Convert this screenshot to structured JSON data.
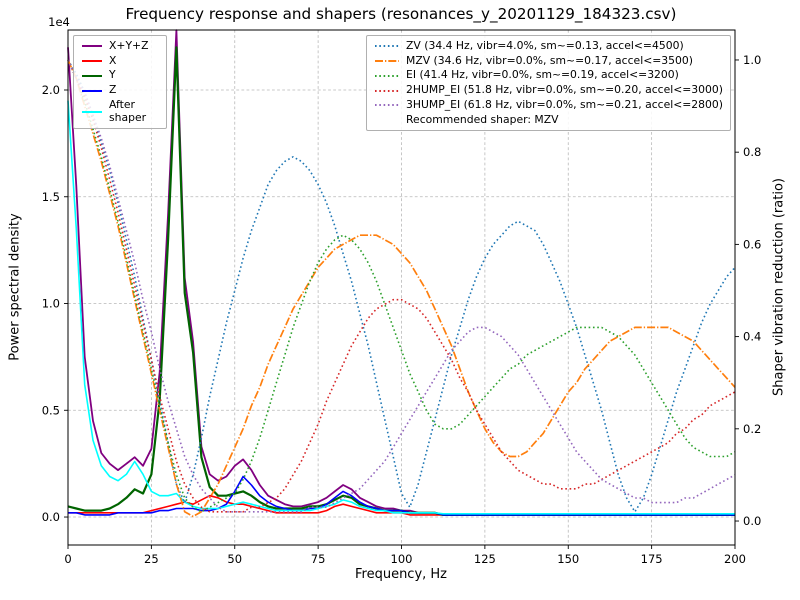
{
  "title": "Frequency response and shapers (resonances_y_20201129_184323.csv)",
  "xlabel": "Frequency, Hz",
  "ylabel_left": "Power spectral density",
  "ylabel_right": "Shaper vibration reduction (ratio)",
  "offset_text": "1e4",
  "recommended_label": "Recommended shaper: MZV",
  "chart_data": {
    "type": "line",
    "x_range": [
      0,
      200
    ],
    "ylim_left": [
      -0.131,
      2.281
    ],
    "ylim_right": [
      -0.052,
      1.065
    ],
    "x_ticks": [
      "0",
      "25",
      "50",
      "75",
      "100",
      "125",
      "150",
      "175",
      "200"
    ],
    "y_ticks_left": [
      "0.0",
      "0.5",
      "1.0",
      "1.5",
      "2.0"
    ],
    "y_ticks_right": [
      "0.0",
      "0.2",
      "0.4",
      "0.6",
      "0.8",
      "1.0"
    ],
    "grid": true,
    "left_axis_units": "1e4",
    "x": [
      0,
      2.5,
      5,
      7.5,
      10,
      12.5,
      15,
      17.5,
      20,
      22.5,
      25,
      27.5,
      30,
      32.5,
      35,
      37.5,
      40,
      42.5,
      45,
      47.5,
      50,
      52.5,
      55,
      57.5,
      60,
      62.5,
      65,
      67.5,
      70,
      72.5,
      75,
      77.5,
      80,
      82.5,
      85,
      87.5,
      90,
      92.5,
      95,
      97.5,
      100,
      102.5,
      105,
      107.5,
      110,
      112.5,
      115,
      117.5,
      120,
      122.5,
      125,
      127.5,
      130,
      132.5,
      135,
      137.5,
      140,
      142.5,
      145,
      147.5,
      150,
      152.5,
      155,
      157.5,
      160,
      162.5,
      165,
      167.5,
      170,
      172.5,
      175,
      177.5,
      180,
      182.5,
      185,
      187.5,
      190,
      192.5,
      195,
      197.5,
      200
    ],
    "psd_series": [
      {
        "name": "X+Y+Z",
        "color": "#800080",
        "style": "solid",
        "width": 1.8,
        "values": [
          2.2,
          1.55,
          0.75,
          0.45,
          0.3,
          0.25,
          0.22,
          0.25,
          0.28,
          0.24,
          0.32,
          0.68,
          1.42,
          2.28,
          1.12,
          0.82,
          0.33,
          0.2,
          0.17,
          0.19,
          0.24,
          0.27,
          0.22,
          0.15,
          0.1,
          0.08,
          0.06,
          0.05,
          0.05,
          0.06,
          0.07,
          0.09,
          0.12,
          0.15,
          0.13,
          0.09,
          0.07,
          0.05,
          0.04,
          0.04,
          0.03,
          0.03,
          0.02,
          0.02,
          0.02,
          0.01,
          0.01,
          0.01,
          0.01,
          0.01,
          0.01,
          0.01,
          0.01,
          0.01,
          0.01,
          0.01,
          0.01,
          0.01,
          0.01,
          0.01,
          0.01,
          0.01,
          0.01,
          0.01,
          0.01,
          0.01,
          0.01,
          0.01,
          0.01,
          0.01,
          0.01,
          0.01,
          0.01,
          0.01,
          0.01,
          0.01,
          0.01,
          0.01,
          0.01,
          0.01,
          0.01
        ]
      },
      {
        "name": "X",
        "color": "#ff0000",
        "style": "solid",
        "width": 1.6,
        "values": [
          0.02,
          0.02,
          0.02,
          0.02,
          0.02,
          0.02,
          0.02,
          0.02,
          0.02,
          0.02,
          0.03,
          0.04,
          0.05,
          0.06,
          0.07,
          0.06,
          0.08,
          0.1,
          0.09,
          0.07,
          0.06,
          0.06,
          0.05,
          0.04,
          0.03,
          0.02,
          0.02,
          0.02,
          0.02,
          0.02,
          0.02,
          0.03,
          0.05,
          0.06,
          0.05,
          0.04,
          0.03,
          0.02,
          0.02,
          0.02,
          0.02,
          0.01,
          0.01,
          0.01,
          0.01,
          0.01,
          0.01,
          0.01,
          0.01,
          0.01,
          0.01,
          0.01,
          0.01,
          0.01,
          0.01,
          0.01,
          0.01,
          0.01,
          0.01,
          0.01,
          0.01,
          0.01,
          0.01,
          0.01,
          0.01,
          0.01,
          0.01,
          0.01,
          0.01,
          0.01,
          0.01,
          0.01,
          0.01,
          0.01,
          0.01,
          0.01,
          0.01,
          0.01,
          0.01,
          0.01,
          0.01
        ]
      },
      {
        "name": "Y",
        "color": "#006400",
        "style": "solid",
        "width": 2.2,
        "values": [
          0.05,
          0.04,
          0.03,
          0.03,
          0.03,
          0.04,
          0.06,
          0.09,
          0.13,
          0.11,
          0.2,
          0.55,
          1.3,
          2.2,
          1.05,
          0.77,
          0.28,
          0.14,
          0.1,
          0.1,
          0.11,
          0.12,
          0.1,
          0.07,
          0.05,
          0.04,
          0.04,
          0.04,
          0.04,
          0.05,
          0.05,
          0.06,
          0.08,
          0.1,
          0.09,
          0.06,
          0.05,
          0.04,
          0.03,
          0.03,
          0.03,
          0.02,
          0.02,
          0.02,
          0.02,
          0.01,
          0.01,
          0.01,
          0.01,
          0.01,
          0.01,
          0.01,
          0.01,
          0.01,
          0.01,
          0.01,
          0.01,
          0.01,
          0.01,
          0.01,
          0.01,
          0.01,
          0.01,
          0.01,
          0.01,
          0.01,
          0.01,
          0.01,
          0.01,
          0.01,
          0.01,
          0.01,
          0.01,
          0.01,
          0.01,
          0.01,
          0.01,
          0.01,
          0.01,
          0.01,
          0.01
        ]
      },
      {
        "name": "Z",
        "color": "#0000ff",
        "style": "solid",
        "width": 1.6,
        "values": [
          0.02,
          0.02,
          0.01,
          0.01,
          0.01,
          0.01,
          0.02,
          0.02,
          0.02,
          0.02,
          0.02,
          0.03,
          0.03,
          0.04,
          0.04,
          0.04,
          0.03,
          0.03,
          0.04,
          0.06,
          0.12,
          0.19,
          0.15,
          0.1,
          0.07,
          0.05,
          0.04,
          0.03,
          0.03,
          0.04,
          0.04,
          0.06,
          0.09,
          0.12,
          0.1,
          0.07,
          0.05,
          0.04,
          0.03,
          0.03,
          0.03,
          0.02,
          0.02,
          0.02,
          0.02,
          0.01,
          0.01,
          0.01,
          0.01,
          0.01,
          0.01,
          0.01,
          0.01,
          0.01,
          0.01,
          0.01,
          0.01,
          0.01,
          0.01,
          0.01,
          0.01,
          0.01,
          0.01,
          0.01,
          0.01,
          0.01,
          0.01,
          0.01,
          0.01,
          0.01,
          0.01,
          0.01,
          0.01,
          0.01,
          0.01,
          0.01,
          0.01,
          0.01,
          0.01,
          0.01,
          0.01
        ]
      },
      {
        "name": "After shaper",
        "color": "#00ffff",
        "style": "solid",
        "width": 1.6,
        "values": [
          1.95,
          1.35,
          0.62,
          0.36,
          0.24,
          0.19,
          0.17,
          0.2,
          0.26,
          0.2,
          0.12,
          0.1,
          0.1,
          0.11,
          0.07,
          0.05,
          0.04,
          0.04,
          0.04,
          0.05,
          0.06,
          0.07,
          0.06,
          0.05,
          0.04,
          0.03,
          0.03,
          0.03,
          0.03,
          0.03,
          0.04,
          0.05,
          0.06,
          0.08,
          0.07,
          0.05,
          0.04,
          0.03,
          0.03,
          0.02,
          0.02,
          0.02,
          0.02,
          0.02,
          0.02,
          0.015,
          0.015,
          0.015,
          0.015,
          0.015,
          0.015,
          0.015,
          0.015,
          0.015,
          0.015,
          0.015,
          0.015,
          0.015,
          0.015,
          0.015,
          0.015,
          0.015,
          0.015,
          0.015,
          0.015,
          0.015,
          0.015,
          0.015,
          0.015,
          0.015,
          0.015,
          0.015,
          0.015,
          0.015,
          0.015,
          0.015,
          0.015,
          0.015,
          0.015,
          0.015,
          0.015
        ]
      }
    ],
    "shaper_series": [
      {
        "name": "ZV (34.4 Hz, vibr=4.0%, sm~=0.13, accel<=4500)",
        "color": "#1f77b4",
        "style": "dotted",
        "width": 1.6,
        "values": [
          1.0,
          0.97,
          0.93,
          0.88,
          0.82,
          0.76,
          0.69,
          0.61,
          0.53,
          0.44,
          0.35,
          0.26,
          0.17,
          0.08,
          0.04,
          0.1,
          0.18,
          0.27,
          0.35,
          0.43,
          0.5,
          0.57,
          0.63,
          0.68,
          0.73,
          0.76,
          0.78,
          0.79,
          0.78,
          0.76,
          0.73,
          0.69,
          0.64,
          0.58,
          0.52,
          0.45,
          0.38,
          0.3,
          0.22,
          0.14,
          0.06,
          0.03,
          0.08,
          0.15,
          0.22,
          0.29,
          0.36,
          0.42,
          0.48,
          0.53,
          0.57,
          0.6,
          0.62,
          0.64,
          0.65,
          0.64,
          0.63,
          0.6,
          0.56,
          0.52,
          0.47,
          0.42,
          0.36,
          0.3,
          0.24,
          0.17,
          0.1,
          0.05,
          0.02,
          0.05,
          0.1,
          0.16,
          0.22,
          0.28,
          0.33,
          0.38,
          0.43,
          0.47,
          0.5,
          0.53,
          0.55
        ]
      },
      {
        "name": "MZV (34.6 Hz, vibr=0.0%, sm~=0.17, accel<=3500)",
        "color": "#ff7f0e",
        "style": "dashdot",
        "width": 1.7,
        "values": [
          1.0,
          0.96,
          0.9,
          0.84,
          0.78,
          0.71,
          0.64,
          0.56,
          0.48,
          0.4,
          0.32,
          0.24,
          0.16,
          0.08,
          0.02,
          0.01,
          0.02,
          0.05,
          0.08,
          0.12,
          0.16,
          0.2,
          0.25,
          0.29,
          0.34,
          0.38,
          0.42,
          0.46,
          0.49,
          0.52,
          0.55,
          0.57,
          0.59,
          0.6,
          0.61,
          0.62,
          0.62,
          0.62,
          0.61,
          0.6,
          0.58,
          0.56,
          0.53,
          0.5,
          0.46,
          0.42,
          0.38,
          0.33,
          0.28,
          0.24,
          0.2,
          0.17,
          0.15,
          0.14,
          0.14,
          0.15,
          0.17,
          0.19,
          0.22,
          0.25,
          0.28,
          0.3,
          0.33,
          0.35,
          0.37,
          0.39,
          0.4,
          0.41,
          0.42,
          0.42,
          0.42,
          0.42,
          0.42,
          0.41,
          0.4,
          0.39,
          0.37,
          0.35,
          0.33,
          0.31,
          0.29
        ]
      },
      {
        "name": "EI (41.4 Hz, vibr=0.0%, sm~=0.19, accel<=3200)",
        "color": "#2ca02c",
        "style": "dotted",
        "width": 1.6,
        "values": [
          1.0,
          0.96,
          0.91,
          0.85,
          0.79,
          0.72,
          0.65,
          0.57,
          0.49,
          0.41,
          0.33,
          0.25,
          0.17,
          0.1,
          0.05,
          0.03,
          0.02,
          0.03,
          0.04,
          0.05,
          0.06,
          0.09,
          0.13,
          0.18,
          0.24,
          0.3,
          0.36,
          0.42,
          0.47,
          0.52,
          0.56,
          0.59,
          0.61,
          0.62,
          0.61,
          0.59,
          0.56,
          0.52,
          0.47,
          0.42,
          0.37,
          0.32,
          0.28,
          0.24,
          0.21,
          0.2,
          0.2,
          0.21,
          0.23,
          0.25,
          0.27,
          0.29,
          0.31,
          0.33,
          0.34,
          0.36,
          0.37,
          0.38,
          0.39,
          0.4,
          0.41,
          0.42,
          0.42,
          0.42,
          0.42,
          0.41,
          0.4,
          0.38,
          0.36,
          0.33,
          0.3,
          0.27,
          0.24,
          0.21,
          0.18,
          0.16,
          0.15,
          0.14,
          0.14,
          0.14,
          0.15
        ]
      },
      {
        "name": "2HUMP_EI (51.8 Hz, vibr=0.0%, sm~=0.20, accel<=3000)",
        "color": "#d62728",
        "style": "dotted",
        "width": 1.6,
        "values": [
          1.0,
          0.96,
          0.92,
          0.87,
          0.81,
          0.74,
          0.67,
          0.59,
          0.51,
          0.43,
          0.35,
          0.27,
          0.2,
          0.13,
          0.08,
          0.05,
          0.03,
          0.02,
          0.02,
          0.02,
          0.02,
          0.02,
          0.03,
          0.03,
          0.04,
          0.05,
          0.07,
          0.1,
          0.13,
          0.17,
          0.21,
          0.26,
          0.3,
          0.34,
          0.38,
          0.41,
          0.44,
          0.46,
          0.47,
          0.48,
          0.48,
          0.47,
          0.46,
          0.44,
          0.41,
          0.38,
          0.35,
          0.31,
          0.28,
          0.24,
          0.21,
          0.18,
          0.15,
          0.13,
          0.11,
          0.1,
          0.09,
          0.08,
          0.08,
          0.07,
          0.07,
          0.07,
          0.08,
          0.08,
          0.09,
          0.1,
          0.11,
          0.12,
          0.13,
          0.14,
          0.15,
          0.16,
          0.17,
          0.19,
          0.2,
          0.22,
          0.23,
          0.25,
          0.26,
          0.27,
          0.28
        ]
      },
      {
        "name": "3HUMP_EI (61.8 Hz, vibr=0.0%, sm~=0.21, accel<=2800)",
        "color": "#9467bd",
        "style": "dotted",
        "width": 1.6,
        "values": [
          1.0,
          0.96,
          0.93,
          0.88,
          0.83,
          0.77,
          0.7,
          0.63,
          0.56,
          0.48,
          0.41,
          0.33,
          0.26,
          0.2,
          0.14,
          0.1,
          0.07,
          0.05,
          0.03,
          0.02,
          0.02,
          0.02,
          0.02,
          0.02,
          0.02,
          0.02,
          0.02,
          0.02,
          0.02,
          0.03,
          0.03,
          0.03,
          0.04,
          0.05,
          0.06,
          0.07,
          0.09,
          0.11,
          0.13,
          0.16,
          0.19,
          0.22,
          0.25,
          0.28,
          0.31,
          0.34,
          0.37,
          0.39,
          0.41,
          0.42,
          0.42,
          0.41,
          0.4,
          0.38,
          0.36,
          0.33,
          0.3,
          0.27,
          0.24,
          0.21,
          0.18,
          0.15,
          0.13,
          0.11,
          0.09,
          0.08,
          0.07,
          0.06,
          0.05,
          0.05,
          0.04,
          0.04,
          0.04,
          0.04,
          0.05,
          0.05,
          0.06,
          0.07,
          0.08,
          0.09,
          0.1
        ]
      }
    ]
  }
}
